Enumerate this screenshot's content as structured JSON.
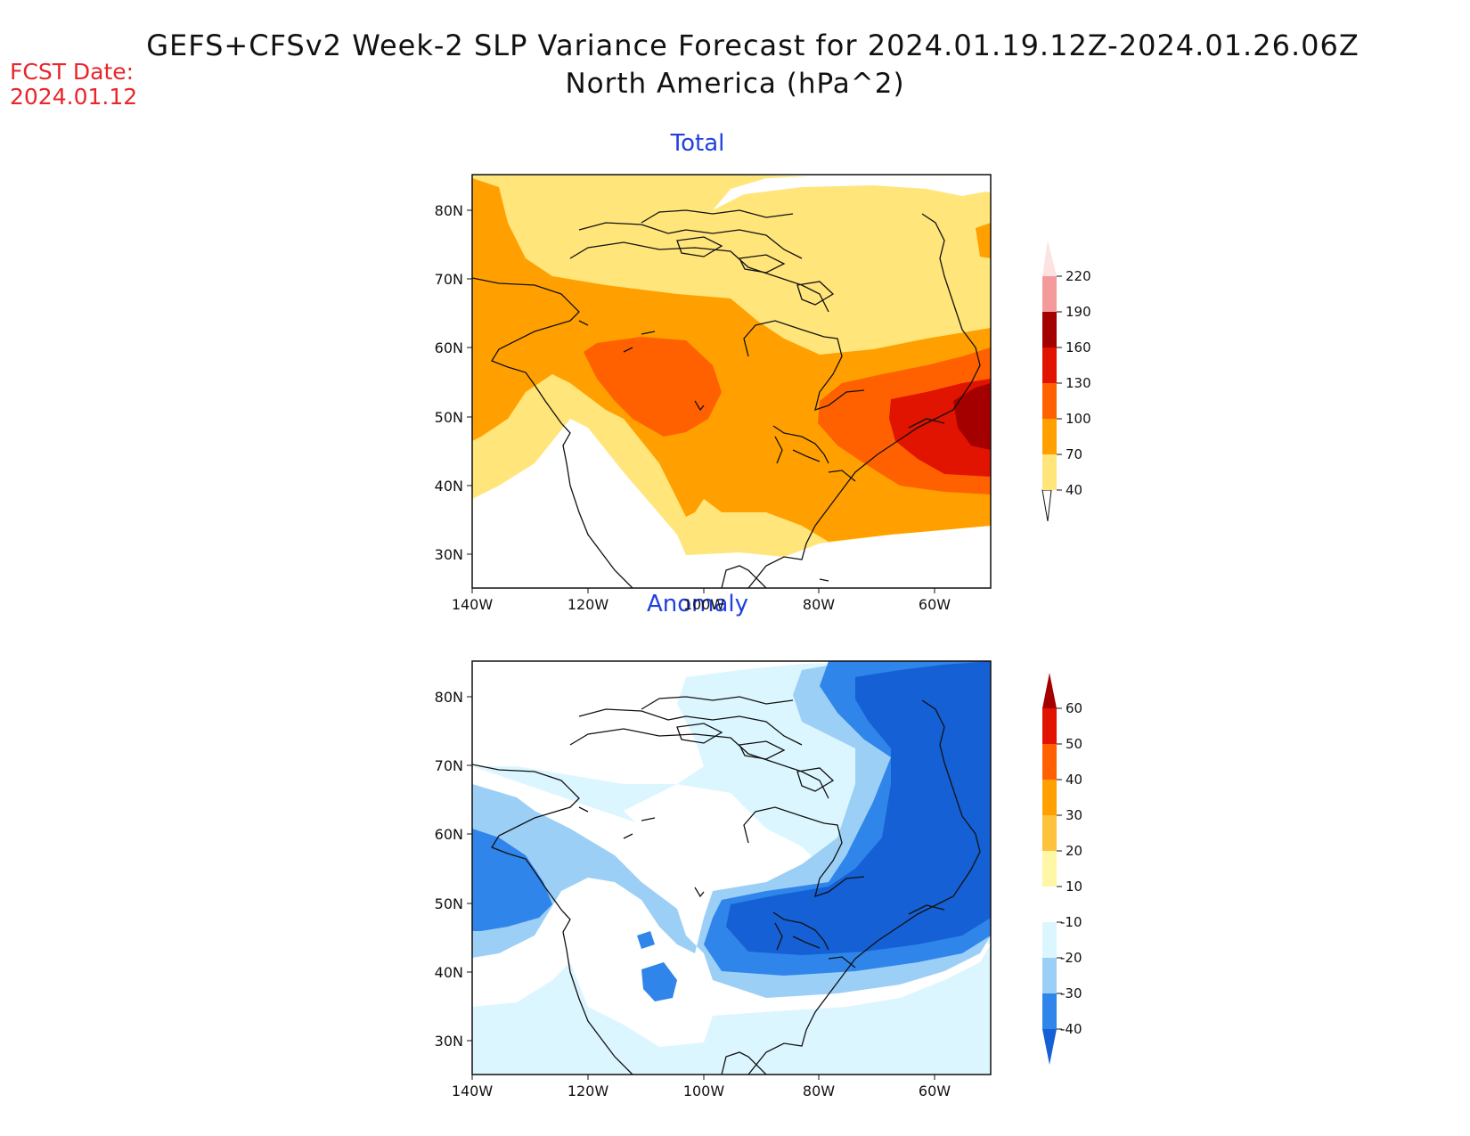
{
  "header": {
    "title_line1": "GEFS+CFSv2 Week-2 SLP Variance Forecast for 2024.01.19.12Z-2024.01.26.06Z",
    "title_line2": "North America (hPa^2)",
    "fcst_label": "FCST Date:",
    "fcst_date": "2024.01.12"
  },
  "panels": [
    {
      "title": "Total",
      "lat_labels": [
        "80N",
        "70N",
        "60N",
        "50N",
        "40N",
        "30N"
      ],
      "lon_labels": [
        "140W",
        "120W",
        "100W",
        "80W",
        "60W"
      ],
      "colorbar": {
        "levels": [
          "40",
          "70",
          "100",
          "130",
          "160",
          "190",
          "220"
        ],
        "colors": [
          "#ffe57a",
          "#ffa000",
          "#ff6100",
          "#e01400",
          "#a50000",
          "#f49a9a",
          "#fde2e2"
        ]
      }
    },
    {
      "title": "Anomaly",
      "lat_labels": [
        "80N",
        "70N",
        "60N",
        "50N",
        "40N",
        "30N"
      ],
      "lon_labels": [
        "140W",
        "120W",
        "100W",
        "80W",
        "60W"
      ],
      "colorbar": {
        "levels": [
          "60",
          "50",
          "40",
          "30",
          "20",
          "10",
          "-10",
          "-20",
          "-30",
          "-40"
        ],
        "colors": [
          "#a50000",
          "#e01400",
          "#ff6100",
          "#ffa000",
          "#ffc23c",
          "#fff7a6",
          "#ffffff",
          "#dcf6ff",
          "#9ccff6",
          "#2f85ea",
          "#1560d4"
        ]
      }
    }
  ]
}
